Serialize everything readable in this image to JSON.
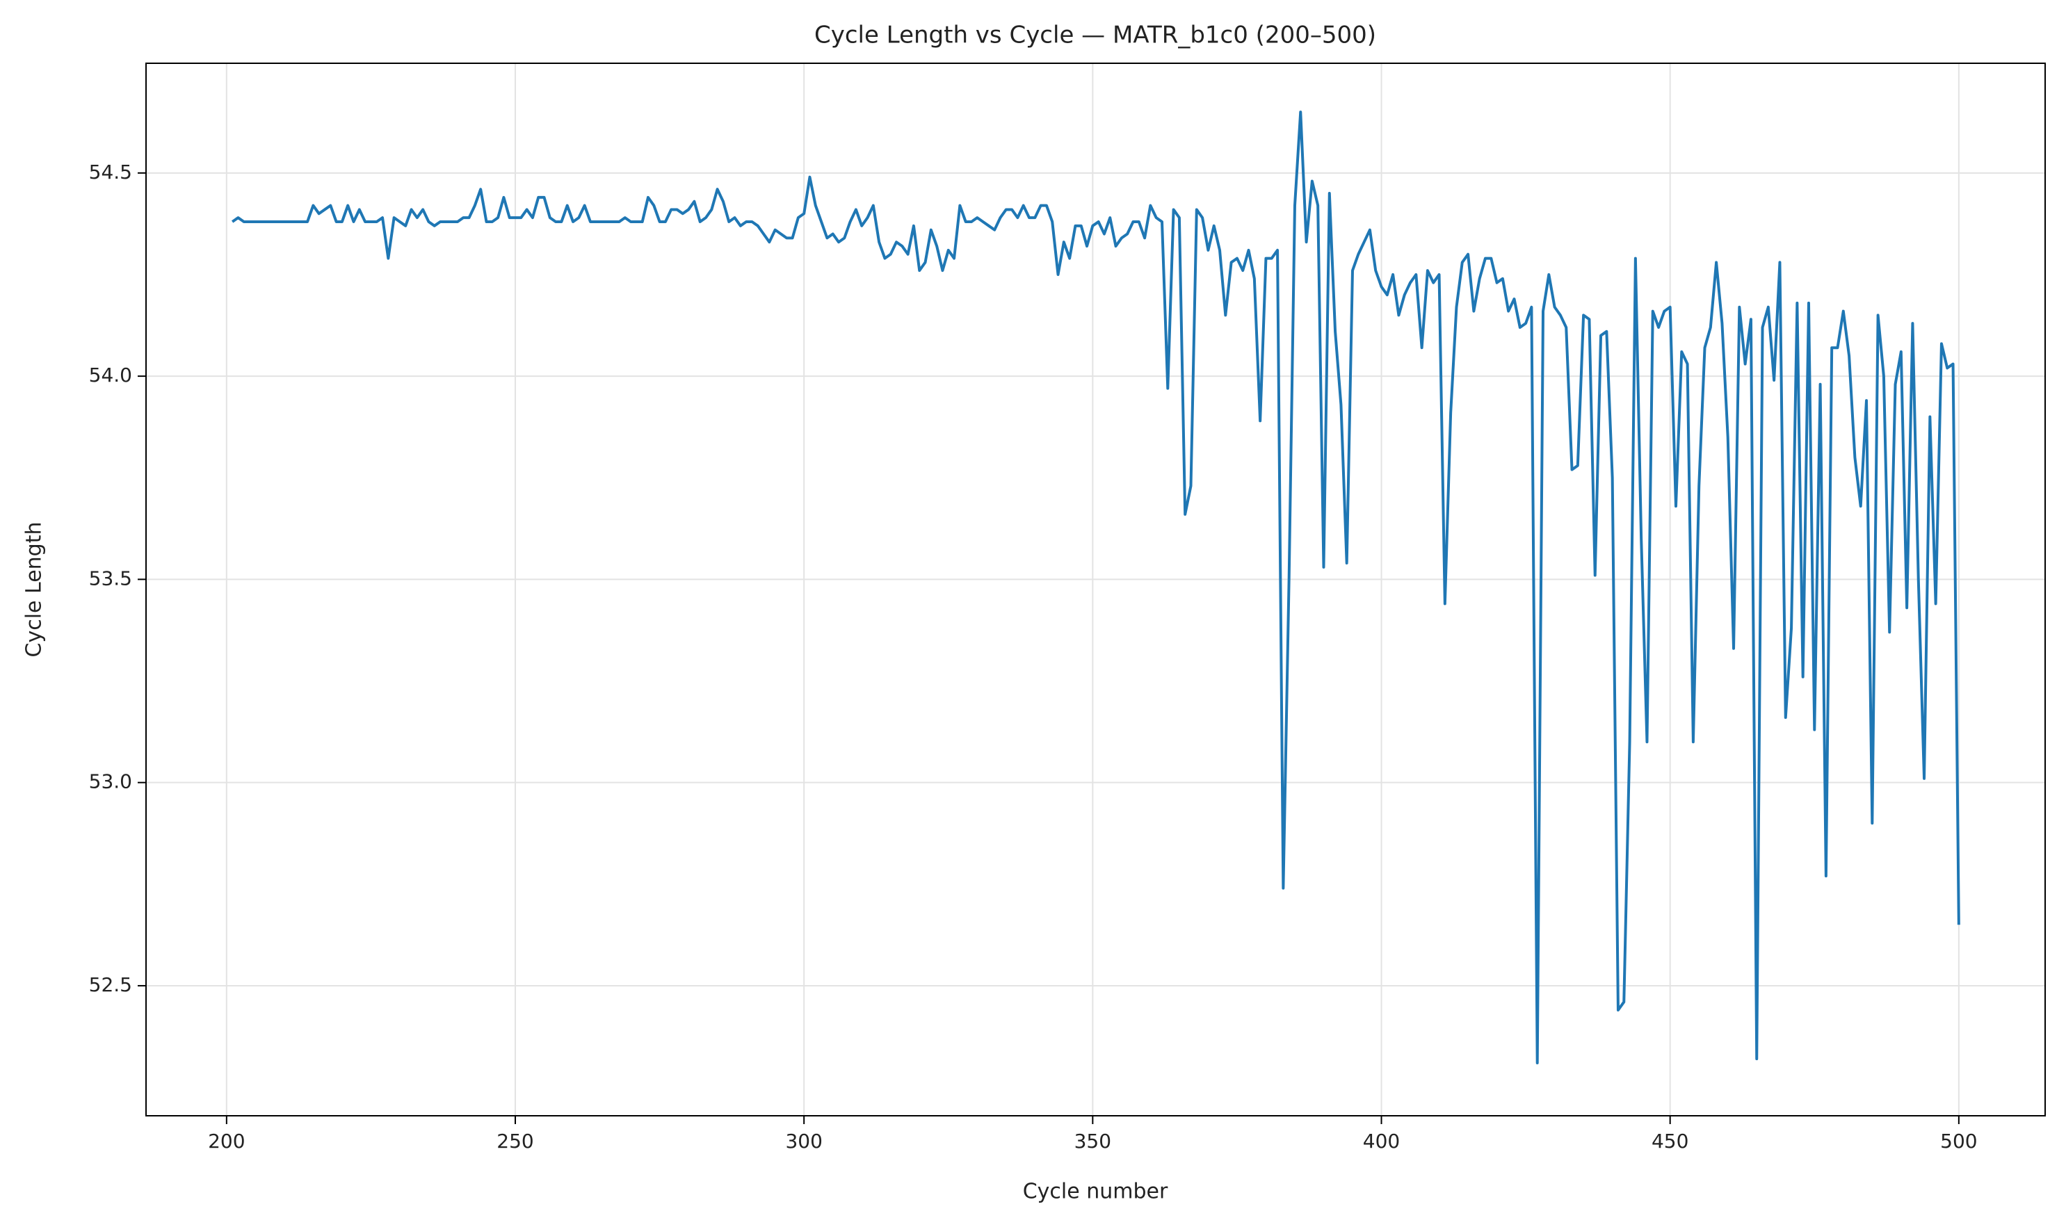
{
  "chart_data": {
    "type": "line",
    "title": "Cycle Length vs Cycle — MATR_b1c0 (200–500)",
    "x_label": "Cycle number",
    "y_label": "Cycle Length",
    "color": "#1f77b4",
    "grid": true,
    "xlim": [
      186.05,
      514.95
    ],
    "ylim": [
      52.18,
      54.77
    ],
    "xticks": [
      200,
      250,
      300,
      350,
      400,
      450,
      500
    ],
    "yticks": [
      52.5,
      {
        "value": 53,
        "label": "53.0"
      },
      53.5,
      {
        "value": 54,
        "label": "54.0"
      },
      54.5
    ],
    "x": [
      201,
      202,
      203,
      204,
      205,
      206,
      207,
      208,
      209,
      210,
      211,
      212,
      213,
      214,
      215,
      216,
      217,
      218,
      219,
      220,
      221,
      222,
      223,
      224,
      225,
      226,
      227,
      228,
      229,
      230,
      231,
      232,
      233,
      234,
      235,
      236,
      237,
      238,
      239,
      240,
      241,
      242,
      243,
      244,
      245,
      246,
      247,
      248,
      249,
      250,
      251,
      252,
      253,
      254,
      255,
      256,
      257,
      258,
      259,
      260,
      261,
      262,
      263,
      264,
      265,
      266,
      267,
      268,
      269,
      270,
      271,
      272,
      273,
      274,
      275,
      276,
      277,
      278,
      279,
      280,
      281,
      282,
      283,
      284,
      285,
      286,
      287,
      288,
      289,
      290,
      291,
      292,
      293,
      294,
      295,
      296,
      297,
      298,
      299,
      300,
      301,
      302,
      303,
      304,
      305,
      306,
      307,
      308,
      309,
      310,
      311,
      312,
      313,
      314,
      315,
      316,
      317,
      318,
      319,
      320,
      321,
      322,
      323,
      324,
      325,
      326,
      327,
      328,
      329,
      330,
      331,
      332,
      333,
      334,
      335,
      336,
      337,
      338,
      339,
      340,
      341,
      342,
      343,
      344,
      345,
      346,
      347,
      348,
      349,
      350,
      351,
      352,
      353,
      354,
      355,
      356,
      357,
      358,
      359,
      360,
      361,
      362,
      363,
      364,
      365,
      366,
      367,
      368,
      369,
      370,
      371,
      372,
      373,
      374,
      375,
      376,
      377,
      378,
      379,
      380,
      381,
      382,
      383,
      384,
      385,
      386,
      387,
      388,
      389,
      390,
      391,
      392,
      393,
      394,
      395,
      396,
      397,
      398,
      399,
      400,
      401,
      402,
      403,
      404,
      405,
      406,
      407,
      408,
      409,
      410,
      411,
      412,
      413,
      414,
      415,
      416,
      417,
      418,
      419,
      420,
      421,
      422,
      423,
      424,
      425,
      426,
      427,
      428,
      429,
      430,
      431,
      432,
      433,
      434,
      435,
      436,
      437,
      438,
      439,
      440,
      441,
      442,
      443,
      444,
      445,
      446,
      447,
      448,
      449,
      450,
      451,
      452,
      453,
      454,
      455,
      456,
      457,
      458,
      459,
      460,
      461,
      462,
      463,
      464,
      465,
      466,
      467,
      468,
      469,
      470,
      471,
      472,
      473,
      474,
      475,
      476,
      477,
      478,
      479,
      480,
      481,
      482,
      483,
      484,
      485,
      486,
      487,
      488,
      489,
      490,
      491,
      492,
      493,
      494,
      495,
      496,
      497,
      498,
      499,
      500
    ],
    "values": [
      54.38,
      54.39,
      54.38,
      54.38,
      54.38,
      54.38,
      54.38,
      54.38,
      54.38,
      54.38,
      54.38,
      54.38,
      54.38,
      54.38,
      54.42,
      54.4,
      54.41,
      54.42,
      54.38,
      54.38,
      54.42,
      54.38,
      54.41,
      54.38,
      54.38,
      54.38,
      54.39,
      54.29,
      54.39,
      54.38,
      54.37,
      54.41,
      54.39,
      54.41,
      54.38,
      54.37,
      54.38,
      54.38,
      54.38,
      54.38,
      54.39,
      54.39,
      54.42,
      54.46,
      54.38,
      54.38,
      54.39,
      54.44,
      54.39,
      54.39,
      54.39,
      54.41,
      54.39,
      54.44,
      54.44,
      54.39,
      54.38,
      54.38,
      54.42,
      54.38,
      54.39,
      54.42,
      54.38,
      54.38,
      54.38,
      54.38,
      54.38,
      54.38,
      54.39,
      54.38,
      54.38,
      54.38,
      54.44,
      54.42,
      54.38,
      54.38,
      54.41,
      54.41,
      54.4,
      54.41,
      54.43,
      54.38,
      54.39,
      54.41,
      54.46,
      54.43,
      54.38,
      54.39,
      54.37,
      54.38,
      54.38,
      54.37,
      54.35,
      54.33,
      54.36,
      54.35,
      54.34,
      54.34,
      54.39,
      54.4,
      54.49,
      54.42,
      54.38,
      54.34,
      54.35,
      54.33,
      54.34,
      54.38,
      54.41,
      54.37,
      54.39,
      54.42,
      54.33,
      54.29,
      54.3,
      54.33,
      54.32,
      54.3,
      54.37,
      54.26,
      54.28,
      54.36,
      54.32,
      54.26,
      54.31,
      54.29,
      54.42,
      54.38,
      54.38,
      54.39,
      54.38,
      54.37,
      54.36,
      54.39,
      54.41,
      54.41,
      54.39,
      54.42,
      54.39,
      54.39,
      54.42,
      54.42,
      54.38,
      54.25,
      54.33,
      54.29,
      54.37,
      54.37,
      54.32,
      54.37,
      54.38,
      54.35,
      54.39,
      54.32,
      54.34,
      54.35,
      54.38,
      54.38,
      54.34,
      54.42,
      54.39,
      54.38,
      53.97,
      54.41,
      54.39,
      53.66,
      53.73,
      54.41,
      54.39,
      54.31,
      54.37,
      54.31,
      54.15,
      54.28,
      54.29,
      54.26,
      54.31,
      54.24,
      53.89,
      54.29,
      54.29,
      54.31,
      52.74,
      53.5,
      54.42,
      54.65,
      54.33,
      54.48,
      54.42,
      53.53,
      54.45,
      54.11,
      53.93,
      53.54,
      54.26,
      54.3,
      54.33,
      54.36,
      54.26,
      54.22,
      54.2,
      54.25,
      54.15,
      54.2,
      54.23,
      54.25,
      54.07,
      54.26,
      54.23,
      54.25,
      53.44,
      53.91,
      54.17,
      54.28,
      54.3,
      54.16,
      54.24,
      54.29,
      54.29,
      54.23,
      54.24,
      54.16,
      54.19,
      54.12,
      54.13,
      54.17,
      52.31,
      54.16,
      54.25,
      54.17,
      54.15,
      54.12,
      53.77,
      53.78,
      54.15,
      54.14,
      53.51,
      54.1,
      54.11,
      53.75,
      52.44,
      52.46,
      53.1,
      54.29,
      53.6,
      53.1,
      54.16,
      54.12,
      54.16,
      54.17,
      53.68,
      54.06,
      54.03,
      53.1,
      53.73,
      54.07,
      54.12,
      54.28,
      54.13,
      53.85,
      53.33,
      54.17,
      54.03,
      54.14,
      52.32,
      54.12,
      54.17,
      53.99,
      54.28,
      53.16,
      53.38,
      54.18,
      53.26,
      54.18,
      53.13,
      53.98,
      52.77,
      54.07,
      54.07,
      54.16,
      54.05,
      53.8,
      53.68,
      53.94,
      52.9,
      54.15,
      54.0,
      53.37,
      53.98,
      54.06,
      53.43,
      54.13,
      53.5,
      53.01,
      53.9,
      53.44,
      54.08,
      54.02,
      54.03,
      52.65
    ]
  }
}
